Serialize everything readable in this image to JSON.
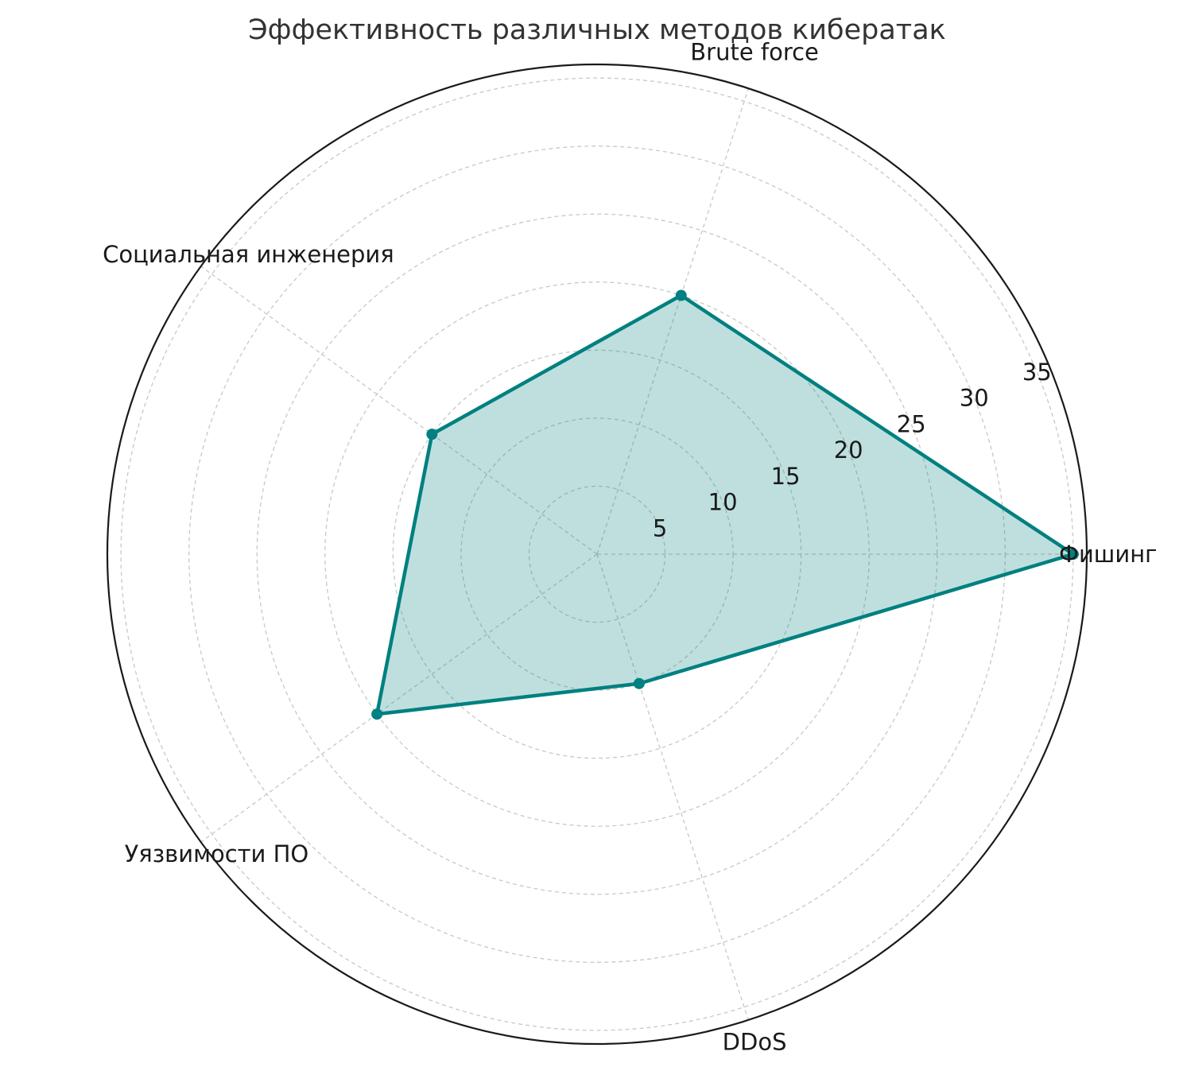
{
  "chart_data": {
    "type": "radar",
    "title": "Эффективность различных методов кибератак",
    "categories": [
      "Фишинг",
      "Brute force",
      "Социальная инженерия",
      "Уязвимости ПО",
      "DDoS"
    ],
    "values": [
      35,
      20,
      15,
      20,
      10
    ],
    "rticks": [
      5,
      10,
      15,
      20,
      25,
      30,
      35
    ],
    "rlim": [
      0,
      36
    ],
    "grid": true,
    "color": "#008080",
    "fill_opacity": 0.25
  }
}
